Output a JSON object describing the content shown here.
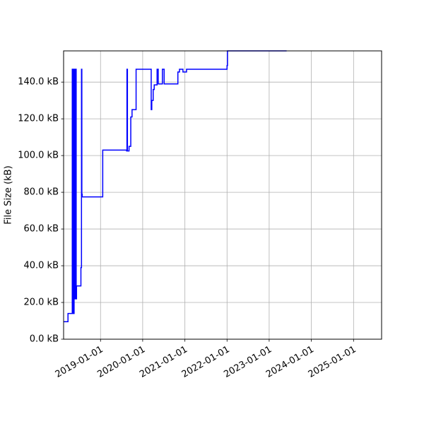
{
  "chart_data": {
    "type": "line",
    "title": "",
    "xlabel": "",
    "ylabel": "File Size (kB)",
    "grid": true,
    "legend": "none",
    "line_color": "#0000ff",
    "x_axis": {
      "kind": "date",
      "range": [
        "2018-02-15",
        "2025-09-01"
      ]
    },
    "y_axis": {
      "range": [
        0,
        157
      ]
    },
    "x_ticks": [
      {
        "date": "2019-01-01",
        "label": "2019-01-01"
      },
      {
        "date": "2020-01-01",
        "label": "2020-01-01"
      },
      {
        "date": "2021-01-01",
        "label": "2021-01-01"
      },
      {
        "date": "2022-01-01",
        "label": "2022-01-01"
      },
      {
        "date": "2023-01-01",
        "label": "2023-01-01"
      },
      {
        "date": "2024-01-01",
        "label": "2024-01-01"
      },
      {
        "date": "2025-01-01",
        "label": "2025-01-01"
      }
    ],
    "y_ticks": [
      {
        "value": 0,
        "label": "0.0 kB"
      },
      {
        "value": 20,
        "label": "20.0 kB"
      },
      {
        "value": 40,
        "label": "40.0 kB"
      },
      {
        "value": 60,
        "label": "60.0 kB"
      },
      {
        "value": 80,
        "label": "80.0 kB"
      },
      {
        "value": 100,
        "label": "100.0 kB"
      },
      {
        "value": 120,
        "label": "120.0 kB"
      },
      {
        "value": 140,
        "label": "140.0 kB"
      }
    ],
    "series": [
      {
        "x": [
          "2018-02-15",
          "2018-03-25",
          "2018-03-25",
          "2018-05-01",
          "2018-05-01",
          "2018-05-03",
          "2018-05-03",
          "2018-05-05",
          "2018-05-05",
          "2018-05-08",
          "2018-05-08",
          "2018-05-11",
          "2018-05-11",
          "2018-05-14",
          "2018-05-14",
          "2018-05-17",
          "2018-05-17",
          "2018-05-20",
          "2018-05-20",
          "2018-05-23",
          "2018-05-23",
          "2018-05-27",
          "2018-05-27",
          "2018-06-01",
          "2018-06-01",
          "2018-06-04",
          "2018-06-04",
          "2018-06-07",
          "2018-06-07",
          "2018-06-20",
          "2018-06-20",
          "2018-07-15",
          "2018-07-15",
          "2018-07-20",
          "2018-07-20",
          "2018-07-23",
          "2018-07-23",
          "2018-07-26",
          "2018-07-26",
          "2018-07-28",
          "2018-07-28",
          "2019-01-20",
          "2019-01-20",
          "2019-08-15",
          "2019-08-15",
          "2019-08-18",
          "2019-08-18",
          "2019-08-22",
          "2019-08-22",
          "2019-08-26",
          "2019-08-26",
          "2019-09-05",
          "2019-09-05",
          "2019-09-20",
          "2019-09-20",
          "2019-10-01",
          "2019-10-01",
          "2019-11-01",
          "2019-11-01",
          "2019-11-05",
          "2019-11-05",
          "2020-03-15",
          "2020-03-15",
          "2020-03-20",
          "2020-03-20",
          "2020-04-01",
          "2020-04-01",
          "2020-04-10",
          "2020-04-10",
          "2020-05-01",
          "2020-05-01",
          "2020-05-05",
          "2020-05-05",
          "2020-05-15",
          "2020-05-15",
          "2020-06-20",
          "2020-06-20",
          "2020-07-05",
          "2020-07-05",
          "2020-07-10",
          "2020-07-10",
          "2020-11-01",
          "2020-11-01",
          "2020-11-15",
          "2020-11-15",
          "2020-12-15",
          "2020-12-15",
          "2021-01-15",
          "2021-01-15",
          "2021-01-25",
          "2021-01-25",
          "2021-03-01",
          "2021-03-01",
          "2022-01-01",
          "2022-01-01",
          "2022-01-05",
          "2022-01-05",
          "2023-06-01"
        ],
        "y": [
          9.5,
          9.5,
          14,
          14,
          147,
          147,
          14,
          14,
          147,
          147,
          14,
          14,
          147,
          147,
          14,
          14,
          147,
          147,
          22,
          22,
          147,
          147,
          22,
          22,
          147,
          147,
          22,
          22,
          29,
          29,
          29,
          29,
          39,
          39,
          147,
          147,
          79,
          79,
          77.5,
          77.5,
          77.5,
          77.5,
          103,
          103,
          102.5,
          102.5,
          147,
          147,
          102.5,
          102.5,
          102.5,
          102.5,
          105,
          105,
          121,
          121,
          125,
          125,
          125,
          125,
          147,
          147,
          125,
          125,
          130,
          130,
          136,
          136,
          138.5,
          138.5,
          138.5,
          138.5,
          147,
          147,
          139,
          139,
          147,
          147,
          139,
          139,
          139,
          139,
          145.5,
          145.5,
          147,
          147,
          145.5,
          145.5,
          147,
          147,
          147,
          147,
          147,
          147,
          149,
          149,
          157,
          157
        ]
      }
    ]
  }
}
